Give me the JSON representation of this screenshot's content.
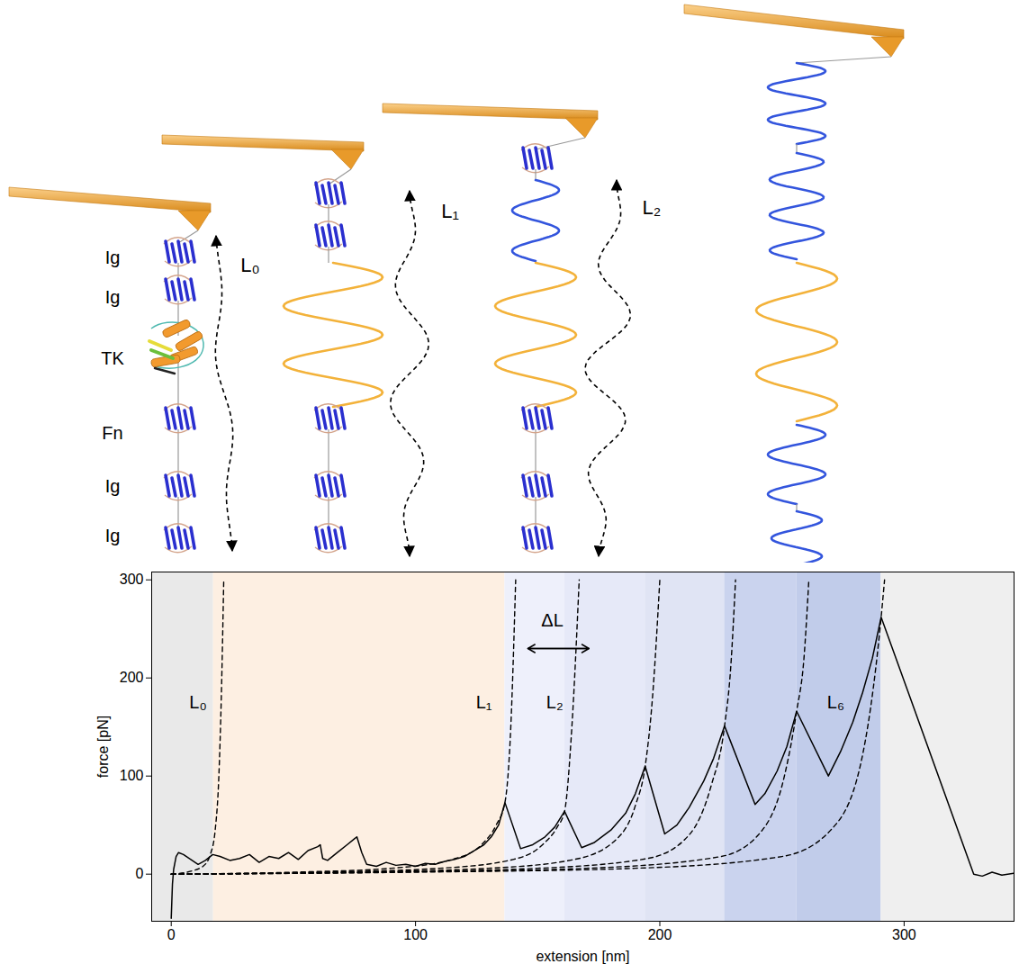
{
  "chart_data": {
    "type": "line",
    "xlabel": "extension [nm]",
    "ylabel": "force [pN]",
    "xlim": [
      -8,
      345
    ],
    "xticks": [
      0,
      100,
      200,
      300
    ],
    "ylim": [
      -48,
      308
    ],
    "yticks": [
      0,
      100,
      200,
      300
    ],
    "grid": false,
    "regions": [
      {
        "x0": -8,
        "x1": 17.3,
        "color": "#e9e9e9"
      },
      {
        "x0": 17.3,
        "x1": 136.6,
        "color": "#fdefe2"
      },
      {
        "x0": 136.6,
        "x1": 161,
        "color": "#eef0fb"
      },
      {
        "x0": 161,
        "x1": 194,
        "color": "#e6e9f8"
      },
      {
        "x0": 194,
        "x1": 226.5,
        "color": "#e0e4f4"
      },
      {
        "x0": 226.5,
        "x1": 256,
        "color": "#cad3ee"
      },
      {
        "x0": 256,
        "x1": 290.6,
        "color": "#c1ccea"
      },
      {
        "x0": 290.6,
        "x1": 345,
        "color": "#efefef"
      }
    ],
    "trace": {
      "color": "#000000",
      "line_style": "solid",
      "x": [
        0,
        0.5,
        1,
        2,
        3,
        5,
        8,
        11,
        14,
        17,
        20,
        24,
        28,
        32,
        36,
        40,
        44,
        48,
        52,
        56,
        60,
        61,
        62,
        64,
        68,
        72,
        75,
        76,
        78,
        80,
        84,
        88,
        92,
        96,
        100,
        104,
        108,
        112,
        116,
        120,
        124,
        128,
        131,
        134,
        136.6,
        143,
        148,
        153,
        157,
        161,
        168,
        173,
        180,
        186,
        190,
        194,
        202,
        207,
        212,
        218,
        222,
        226.5,
        239,
        243,
        248,
        252,
        256,
        269,
        274,
        279,
        283,
        287,
        290.6,
        328.5,
        332,
        336,
        340,
        345
      ],
      "y": [
        -45,
        -10,
        5,
        18,
        22,
        20,
        15,
        10,
        14,
        20,
        18,
        14,
        16,
        20,
        12,
        18,
        16,
        22,
        15,
        24,
        28,
        30,
        16,
        14,
        22,
        30,
        36,
        38,
        22,
        10,
        8,
        12,
        9,
        10,
        8,
        11,
        10,
        13,
        15,
        18,
        24,
        30,
        38,
        50,
        73,
        26,
        30,
        38,
        48,
        64,
        27,
        32,
        45,
        62,
        82,
        110,
        41,
        50,
        68,
        95,
        118,
        151,
        71,
        82,
        105,
        130,
        166,
        100,
        125,
        155,
        185,
        220,
        262,
        0,
        -2,
        2,
        -1,
        1
      ]
    },
    "fits": [
      {
        "color": "#000000",
        "line_style": "dashed",
        "x": [
          0,
          8,
          13,
          16,
          18,
          19.5,
          20.5,
          21.5
        ],
        "y": [
          0,
          3,
          8,
          20,
          45,
          100,
          180,
          300
        ]
      },
      {
        "color": "#000000",
        "line_style": "dashed",
        "x": [
          0,
          50,
          90,
          115,
          127,
          133,
          136.6,
          139,
          141
        ],
        "y": [
          0,
          2,
          6,
          15,
          30,
          50,
          73,
          150,
          300
        ]
      },
      {
        "color": "#000000",
        "line_style": "dashed",
        "x": [
          0,
          60,
          110,
          140,
          152,
          158,
          161,
          164,
          167
        ],
        "y": [
          0,
          2,
          6,
          15,
          30,
          48,
          64,
          150,
          300
        ]
      },
      {
        "color": "#000000",
        "line_style": "dashed",
        "x": [
          0,
          70,
          130,
          165,
          182,
          190,
          194,
          197,
          200
        ],
        "y": [
          0,
          2,
          6,
          15,
          35,
          70,
          110,
          180,
          300
        ]
      },
      {
        "color": "#000000",
        "line_style": "dashed",
        "x": [
          0,
          80,
          150,
          195,
          212,
          221,
          226.5,
          229,
          231
        ],
        "y": [
          0,
          2,
          6,
          16,
          40,
          90,
          151,
          210,
          300
        ]
      },
      {
        "color": "#000000",
        "line_style": "dashed",
        "x": [
          0,
          90,
          170,
          225,
          242,
          251,
          256,
          259,
          261
        ],
        "y": [
          0,
          2,
          6,
          18,
          45,
          100,
          166,
          220,
          300
        ]
      },
      {
        "color": "#000000",
        "line_style": "dashed",
        "x": [
          0,
          100,
          190,
          250,
          270,
          282,
          290.6,
          292
        ],
        "y": [
          0,
          2,
          6,
          18,
          45,
          110,
          262,
          300
        ]
      }
    ],
    "annotations": [
      {
        "text": "L₀",
        "x": 11,
        "y": 175
      },
      {
        "text": "L₁",
        "x": 128,
        "y": 175
      },
      {
        "text": "L₂",
        "x": 157,
        "y": 175
      },
      {
        "text": "L₆",
        "x": 272,
        "y": 175
      },
      {
        "text": "ΔL",
        "x": 156,
        "y": 258,
        "arrow": {
          "x1": 146,
          "x2": 171,
          "y": 230
        }
      }
    ]
  },
  "diagram": {
    "domains": [
      "Ig",
      "Ig",
      "TK",
      "Fn",
      "Ig",
      "Ig"
    ],
    "length_labels": [
      "L₀",
      "L₁",
      "L₂"
    ]
  }
}
